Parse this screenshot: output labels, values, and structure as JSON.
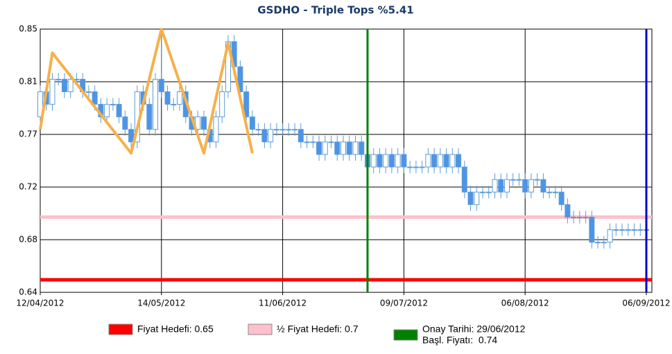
{
  "chart_data": {
    "type": "candlestick",
    "title": "GSDHO - Triple Tops %5.41",
    "xlim": [
      0,
      100
    ],
    "xticks": [
      {
        "value": 0,
        "label": "12/04/2012"
      },
      {
        "value": 20,
        "label": "14/05/2012"
      },
      {
        "value": 40,
        "label": "11/06/2012"
      },
      {
        "value": 60,
        "label": "09/07/2012"
      },
      {
        "value": 80,
        "label": "06/08/2012"
      },
      {
        "value": 100,
        "label": "06/09/2012"
      }
    ],
    "ylim": [
      0.64,
      0.85
    ],
    "yticks": [
      {
        "value": 0.64,
        "label": "0.64"
      },
      {
        "value": 0.682,
        "label": "0.68"
      },
      {
        "value": 0.724,
        "label": "0.72"
      },
      {
        "value": 0.766,
        "label": "0.77"
      },
      {
        "value": 0.808,
        "label": "0.81"
      },
      {
        "value": 0.85,
        "label": "0.85"
      }
    ],
    "grid": true,
    "up_color": "#ffffff",
    "down_color": "#4d94e8",
    "edge_color": "#5b9bd5",
    "x": [
      0,
      1,
      2,
      3,
      4,
      5,
      6,
      7,
      8,
      9,
      10,
      11,
      12,
      13,
      14,
      15,
      16,
      17,
      18,
      19,
      20,
      21,
      22,
      23,
      24,
      25,
      26,
      27,
      28,
      29,
      30,
      31,
      32,
      33,
      34,
      35,
      36,
      37,
      38,
      39,
      40,
      41,
      42,
      43,
      44,
      45,
      46,
      47,
      48,
      49,
      50,
      51,
      52,
      53,
      54,
      55,
      56,
      57,
      58,
      59,
      60,
      61,
      62,
      63,
      64,
      65,
      66,
      67,
      68,
      69,
      70,
      71,
      72,
      73,
      74,
      75,
      76,
      77,
      78,
      79,
      80,
      81,
      82,
      83,
      84,
      85,
      86,
      87,
      88,
      89,
      90,
      91,
      92,
      93,
      94,
      95,
      96,
      97,
      98,
      99,
      100
    ],
    "open": [
      0.78,
      0.8,
      0.79,
      0.81,
      0.81,
      0.8,
      0.81,
      0.81,
      0.8,
      0.8,
      0.79,
      0.78,
      0.79,
      0.79,
      0.78,
      0.77,
      0.76,
      0.8,
      0.79,
      0.77,
      0.81,
      0.8,
      0.79,
      0.79,
      0.8,
      0.78,
      0.77,
      0.78,
      0.77,
      0.76,
      0.78,
      0.8,
      0.84,
      0.82,
      0.8,
      0.78,
      0.77,
      0.77,
      0.76,
      0.77,
      0.77,
      0.77,
      0.77,
      0.77,
      0.76,
      0.76,
      0.76,
      0.75,
      0.76,
      0.76,
      0.75,
      0.76,
      0.75,
      0.76,
      0.75,
      0.74,
      0.75,
      0.74,
      0.75,
      0.74,
      0.75,
      0.74,
      0.74,
      0.74,
      0.74,
      0.75,
      0.74,
      0.75,
      0.74,
      0.75,
      0.74,
      0.72,
      0.71,
      0.72,
      0.72,
      0.72,
      0.73,
      0.72,
      0.73,
      0.73,
      0.73,
      0.72,
      0.73,
      0.73,
      0.72,
      0.72,
      0.72,
      0.71,
      0.7,
      0.7,
      0.7,
      0.7,
      0.68,
      0.68,
      0.68,
      0.69,
      0.69,
      0.69,
      0.69,
      0.69,
      0.69
    ],
    "high": [
      0.805,
      0.805,
      0.815,
      0.815,
      0.815,
      0.815,
      0.815,
      0.815,
      0.805,
      0.805,
      0.795,
      0.795,
      0.795,
      0.795,
      0.785,
      0.775,
      0.805,
      0.805,
      0.795,
      0.815,
      0.85,
      0.805,
      0.795,
      0.805,
      0.805,
      0.785,
      0.785,
      0.785,
      0.775,
      0.785,
      0.805,
      0.845,
      0.845,
      0.825,
      0.805,
      0.785,
      0.775,
      0.775,
      0.775,
      0.775,
      0.775,
      0.775,
      0.775,
      0.775,
      0.765,
      0.765,
      0.765,
      0.765,
      0.765,
      0.765,
      0.765,
      0.765,
      0.765,
      0.765,
      0.755,
      0.755,
      0.755,
      0.755,
      0.755,
      0.755,
      0.755,
      0.745,
      0.745,
      0.745,
      0.755,
      0.755,
      0.755,
      0.755,
      0.755,
      0.755,
      0.745,
      0.725,
      0.725,
      0.725,
      0.725,
      0.735,
      0.735,
      0.735,
      0.735,
      0.735,
      0.735,
      0.735,
      0.735,
      0.735,
      0.725,
      0.725,
      0.725,
      0.715,
      0.705,
      0.705,
      0.705,
      0.705,
      0.685,
      0.685,
      0.695,
      0.695,
      0.695,
      0.695,
      0.695,
      0.695,
      0.695
    ],
    "low": [
      0.775,
      0.785,
      0.785,
      0.805,
      0.795,
      0.795,
      0.805,
      0.795,
      0.795,
      0.785,
      0.775,
      0.775,
      0.785,
      0.775,
      0.765,
      0.755,
      0.755,
      0.785,
      0.765,
      0.765,
      0.795,
      0.785,
      0.785,
      0.785,
      0.775,
      0.765,
      0.765,
      0.765,
      0.755,
      0.755,
      0.775,
      0.795,
      0.815,
      0.795,
      0.775,
      0.765,
      0.765,
      0.755,
      0.755,
      0.765,
      0.765,
      0.765,
      0.765,
      0.755,
      0.755,
      0.755,
      0.745,
      0.745,
      0.755,
      0.745,
      0.745,
      0.745,
      0.745,
      0.745,
      0.735,
      0.735,
      0.735,
      0.735,
      0.735,
      0.735,
      0.735,
      0.735,
      0.735,
      0.735,
      0.735,
      0.735,
      0.735,
      0.735,
      0.735,
      0.735,
      0.715,
      0.705,
      0.705,
      0.715,
      0.715,
      0.715,
      0.715,
      0.715,
      0.725,
      0.725,
      0.715,
      0.715,
      0.725,
      0.715,
      0.715,
      0.715,
      0.705,
      0.695,
      0.695,
      0.695,
      0.695,
      0.675,
      0.675,
      0.675,
      0.675,
      0.685,
      0.685,
      0.685,
      0.685,
      0.685,
      0.685
    ],
    "close": [
      0.8,
      0.79,
      0.81,
      0.81,
      0.8,
      0.81,
      0.81,
      0.8,
      0.8,
      0.79,
      0.78,
      0.79,
      0.79,
      0.78,
      0.77,
      0.76,
      0.8,
      0.79,
      0.77,
      0.81,
      0.8,
      0.79,
      0.79,
      0.8,
      0.78,
      0.77,
      0.78,
      0.77,
      0.76,
      0.78,
      0.8,
      0.84,
      0.82,
      0.8,
      0.78,
      0.77,
      0.77,
      0.76,
      0.77,
      0.77,
      0.77,
      0.77,
      0.77,
      0.76,
      0.76,
      0.76,
      0.75,
      0.76,
      0.76,
      0.75,
      0.76,
      0.75,
      0.76,
      0.75,
      0.74,
      0.75,
      0.74,
      0.75,
      0.74,
      0.75,
      0.74,
      0.74,
      0.74,
      0.74,
      0.75,
      0.74,
      0.75,
      0.74,
      0.75,
      0.74,
      0.72,
      0.71,
      0.72,
      0.72,
      0.72,
      0.73,
      0.72,
      0.73,
      0.73,
      0.73,
      0.72,
      0.73,
      0.73,
      0.72,
      0.72,
      0.72,
      0.71,
      0.7,
      0.7,
      0.7,
      0.7,
      0.68,
      0.68,
      0.68,
      0.69,
      0.69,
      0.69,
      0.69,
      0.69,
      0.69,
      0.69
    ],
    "pattern": {
      "color": "#f7b04a",
      "x": [
        0,
        2,
        15,
        20,
        27,
        31,
        35
      ],
      "y": [
        0.77,
        0.831,
        0.751,
        0.85,
        0.751,
        0.839,
        0.751
      ]
    },
    "target": {
      "name": "Fiyat Hedefi: 0.65",
      "value": 0.65,
      "color": "#ff0000"
    },
    "half_target": {
      "name": "½ Fiyat Hedefi: 0.7",
      "value": 0.7,
      "color": "#ffc0cb"
    },
    "confirmation": {
      "name": "Onay Tarihi: 29/06/2012",
      "name2": "Başl. Fiyatı:  0.74",
      "x": 54,
      "color": "#008000"
    },
    "end_line": {
      "x": 100,
      "color": "#0000cc"
    }
  }
}
